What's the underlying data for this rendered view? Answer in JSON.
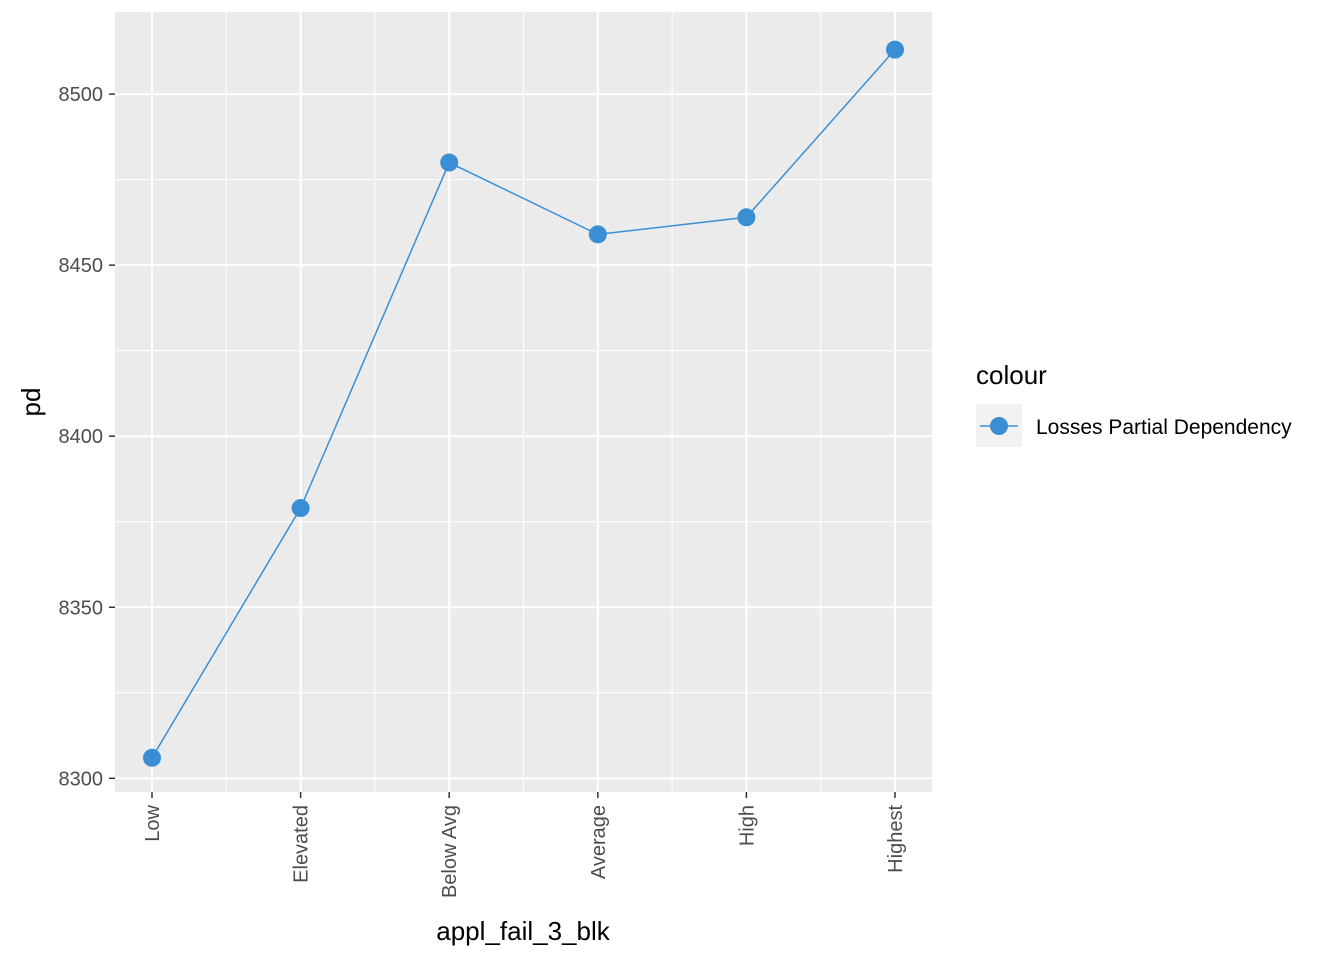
{
  "chart_data": {
    "type": "line",
    "categories": [
      "Low",
      "Elevated",
      "Below Avg",
      "Average",
      "High",
      "Highest"
    ],
    "series": [
      {
        "name": "Losses Partial Dependency",
        "values": [
          8306,
          8379,
          8480,
          8459,
          8464,
          8513
        ]
      }
    ],
    "xlabel": "appl_fail_3_blk",
    "ylabel": "pd",
    "ylim": [
      8296,
      8524
    ],
    "yticks": [
      8300,
      8350,
      8400,
      8450,
      8500
    ],
    "ytick_labels": [
      "8300",
      "8350",
      "8400",
      "8450",
      "8500"
    ],
    "grid": true,
    "legend": {
      "title": "colour",
      "position": "right"
    },
    "colors": {
      "series": "#3a8fd4",
      "panel": "#ebebeb",
      "grid": "#ffffff"
    }
  }
}
